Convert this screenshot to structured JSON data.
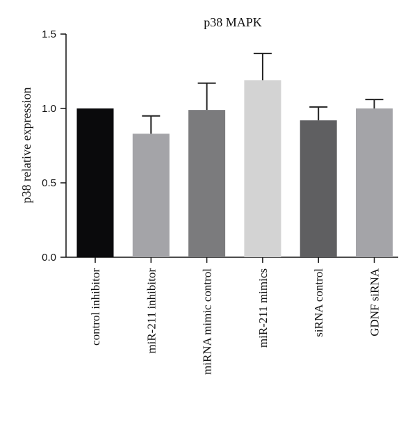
{
  "chart_data": {
    "type": "bar",
    "title": "p38 MAPK",
    "xlabel": "",
    "ylabel": "p38 relative expression",
    "ylim": [
      0,
      1.5
    ],
    "yticks": [
      "0.0",
      "0.5",
      "1.0",
      "1.5"
    ],
    "categories": [
      "control inhibitor",
      "miR-211 inhibitor",
      "miRNA mimic control",
      "miR-211 mimics",
      "siRNA control",
      "GDNF siRNA"
    ],
    "values": [
      1.0,
      0.83,
      0.99,
      1.19,
      0.92,
      1.0
    ],
    "errors": [
      0.0,
      0.12,
      0.18,
      0.18,
      0.09,
      0.06
    ],
    "colors": [
      "#0a0a0c",
      "#a4a4a8",
      "#7b7b7d",
      "#d3d3d3",
      "#5f5f61",
      "#a4a4a8"
    ],
    "grid": false,
    "legend": "none"
  }
}
